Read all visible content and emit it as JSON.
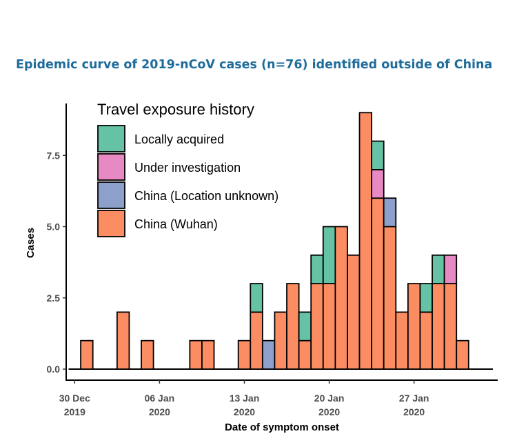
{
  "chart_data": {
    "type": "bar",
    "stacked": true,
    "title": "Epidemic curve of 2019-nCoV cases (n=76) identified outside of China",
    "xlabel": "Date of symptom onset",
    "ylabel": "Cases",
    "ylim": [
      0,
      9.3
    ],
    "yticks": [
      0.0,
      2.5,
      5.0,
      7.5
    ],
    "ytick_labels": [
      "0.0",
      "2.5",
      "5.0",
      "7.5"
    ],
    "x_start_date": "2019-12-30",
    "x_range_days": [
      -0.7,
      34.9
    ],
    "xticks": [
      {
        "day": 0,
        "line1": "30 Dec",
        "line2": "2019"
      },
      {
        "day": 7,
        "line1": "06 Jan",
        "line2": "2020"
      },
      {
        "day": 14,
        "line1": "13 Jan",
        "line2": "2020"
      },
      {
        "day": 21,
        "line1": "20 Jan",
        "line2": "2020"
      },
      {
        "day": 28,
        "line1": "27 Jan",
        "line2": "2020"
      }
    ],
    "legend": {
      "title": "Travel exposure history",
      "position": "top-left",
      "entries": [
        {
          "key": "local",
          "label": "Locally acquired"
        },
        {
          "key": "investigation",
          "label": "Under investigation"
        },
        {
          "key": "china_unknown",
          "label": "China (Location unknown)"
        },
        {
          "key": "wuhan",
          "label": "China (Wuhan)"
        }
      ]
    },
    "colors": {
      "wuhan": "#fc8d62",
      "china_unknown": "#8da0cb",
      "investigation": "#e78ac3",
      "local": "#66c2a5"
    },
    "stack_order": [
      "wuhan",
      "china_unknown",
      "investigation",
      "local"
    ],
    "series": [
      {
        "key": "wuhan",
        "name": "China (Wuhan)",
        "points": [
          {
            "date": "2019-12-31",
            "value": 1
          },
          {
            "date": "2020-01-03",
            "value": 2
          },
          {
            "date": "2020-01-05",
            "value": 1
          },
          {
            "date": "2020-01-09",
            "value": 1
          },
          {
            "date": "2020-01-10",
            "value": 1
          },
          {
            "date": "2020-01-13",
            "value": 1
          },
          {
            "date": "2020-01-14",
            "value": 2
          },
          {
            "date": "2020-01-16",
            "value": 2
          },
          {
            "date": "2020-01-17",
            "value": 3
          },
          {
            "date": "2020-01-18",
            "value": 1
          },
          {
            "date": "2020-01-19",
            "value": 3
          },
          {
            "date": "2020-01-20",
            "value": 3
          },
          {
            "date": "2020-01-21",
            "value": 5
          },
          {
            "date": "2020-01-22",
            "value": 4
          },
          {
            "date": "2020-01-23",
            "value": 9
          },
          {
            "date": "2020-01-24",
            "value": 6
          },
          {
            "date": "2020-01-25",
            "value": 5
          },
          {
            "date": "2020-01-26",
            "value": 2
          },
          {
            "date": "2020-01-27",
            "value": 3
          },
          {
            "date": "2020-01-28",
            "value": 2
          },
          {
            "date": "2020-01-29",
            "value": 3
          },
          {
            "date": "2020-01-30",
            "value": 3
          },
          {
            "date": "2020-01-31",
            "value": 1
          }
        ]
      },
      {
        "key": "china_unknown",
        "name": "China (Location unknown)",
        "points": [
          {
            "date": "2020-01-15",
            "value": 1
          },
          {
            "date": "2020-01-25",
            "value": 1
          }
        ]
      },
      {
        "key": "investigation",
        "name": "Under investigation",
        "points": [
          {
            "date": "2020-01-24",
            "value": 1
          },
          {
            "date": "2020-01-30",
            "value": 1
          }
        ]
      },
      {
        "key": "local",
        "name": "Locally acquired",
        "points": [
          {
            "date": "2020-01-14",
            "value": 1
          },
          {
            "date": "2020-01-18",
            "value": 1
          },
          {
            "date": "2020-01-19",
            "value": 1
          },
          {
            "date": "2020-01-20",
            "value": 2
          },
          {
            "date": "2020-01-24",
            "value": 1
          },
          {
            "date": "2020-01-28",
            "value": 1
          },
          {
            "date": "2020-01-29",
            "value": 1
          }
        ]
      }
    ]
  }
}
